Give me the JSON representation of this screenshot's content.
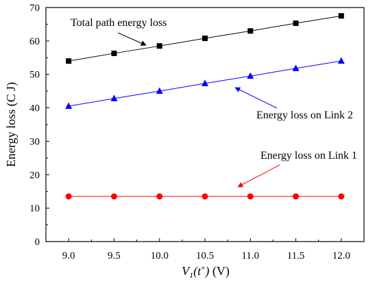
{
  "chart_data": {
    "type": "line",
    "x": [
      9.0,
      9.5,
      10.0,
      10.5,
      11.0,
      11.5,
      12.0
    ],
    "xticks": [
      "9.0",
      "9.5",
      "10.0",
      "10.5",
      "11.0",
      "11.5",
      "12.0"
    ],
    "yticks": [
      "0",
      "10",
      "20",
      "30",
      "40",
      "50",
      "60",
      "70"
    ],
    "xlim": [
      8.75,
      12.25
    ],
    "ylim": [
      0,
      70
    ],
    "xlabel": {
      "main": "V",
      "sub": "1",
      "paren_open": "(t",
      "sup": "+",
      "paren_close": ")",
      "unit": " (V)"
    },
    "ylabel": "Energy loss (C J)",
    "grid": false,
    "legend": "none",
    "series": [
      {
        "name": "Total path energy loss",
        "marker": "square",
        "color": "#000000",
        "line_color": "#000000",
        "values": [
          54.0,
          56.3,
          58.5,
          60.8,
          63.0,
          65.3,
          67.5
        ]
      },
      {
        "name": "Energy loss on Link 2",
        "marker": "triangle",
        "color": "#0000ff",
        "line_color": "#0000ff",
        "values": [
          40.5,
          42.8,
          45.0,
          47.3,
          49.5,
          51.8,
          54.0
        ]
      },
      {
        "name": "Energy loss on Link 1",
        "marker": "circle",
        "color": "#ff0000",
        "line_color": "#ff0000",
        "values": [
          13.5,
          13.5,
          13.5,
          13.5,
          13.5,
          13.5,
          13.5
        ]
      }
    ],
    "annotations": [
      {
        "text": "Total path energy loss",
        "arrow_color": "#000000"
      },
      {
        "text": "Energy loss on Link 2",
        "arrow_color": "#0000ff"
      },
      {
        "text": "Energy loss on Link 1",
        "arrow_color": "#ff0000"
      }
    ]
  }
}
